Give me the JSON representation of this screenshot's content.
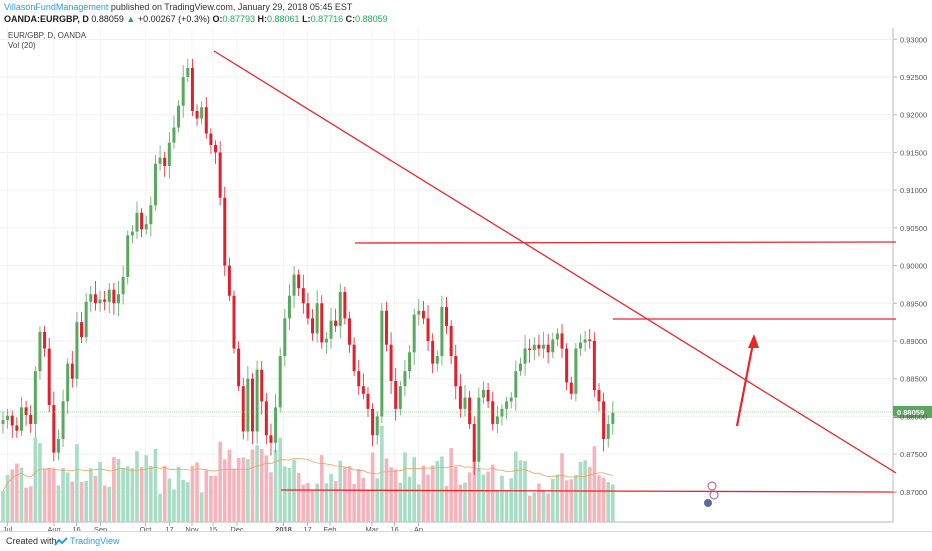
{
  "header": {
    "author": "VillasonFundManagement",
    "published": " published on TradingView.com, January 29, 2018 05:45 EST",
    "symbol": "OANDA:EURGBP, D",
    "price": "0.88059",
    "change": "+0.00267 (+0.3%)",
    "o_label": "O:",
    "o_value": "0.87793",
    "h_label": "H:",
    "h_value": "0.88061",
    "l_label": "L:",
    "l_value": "0.87716",
    "c_label": "C:",
    "c_value": "0.88059"
  },
  "legend": {
    "pair": "EUR/GBP, D, OANDA",
    "vol": "Vol (20)"
  },
  "footer": {
    "created": "Created with",
    "brand": "TradingView"
  },
  "colors": {
    "up": "#5aa85f",
    "down": "#e0202e",
    "vol_up": "#a8dcc4",
    "vol_down": "#f5b3bb",
    "trend": "#e8262e",
    "ma": "#f0a060"
  },
  "chart_data": {
    "type": "candlestick",
    "y_ticks": [
      "0.93000",
      "0.92500",
      "0.92000",
      "0.91500",
      "0.91000",
      "0.90500",
      "0.90000",
      "0.89500",
      "0.89000",
      "0.88500",
      "0.88000",
      "0.87500",
      "0.87000"
    ],
    "x_ticks": [
      "Jul",
      "Aug",
      "16",
      "Sep",
      "Oct",
      "17",
      "Nov",
      "15",
      "Dec",
      "2018",
      "17",
      "Feb",
      "Mar",
      "16",
      "Ap"
    ],
    "last_price_label": "0.88059",
    "ylim": [
      0.866,
      0.9315
    ],
    "x_range_days": [
      "2017-06-28",
      "2018-04-03"
    ],
    "closes": [
      0.8795,
      0.8801,
      0.8788,
      0.8781,
      0.8812,
      0.8802,
      0.879,
      0.886,
      0.8912,
      0.889,
      0.8815,
      0.8752,
      0.877,
      0.882,
      0.887,
      0.885,
      0.8925,
      0.8905,
      0.8952,
      0.8962,
      0.895,
      0.8955,
      0.8952,
      0.8968,
      0.895,
      0.8962,
      0.8985,
      0.904,
      0.9045,
      0.907,
      0.9048,
      0.9055,
      0.908,
      0.9135,
      0.9143,
      0.9132,
      0.9163,
      0.9183,
      0.9212,
      0.925,
      0.9262,
      0.9205,
      0.9195,
      0.921,
      0.9175,
      0.916,
      0.915,
      0.909,
      0.9,
      0.896,
      0.889,
      0.884,
      0.878,
      0.885,
      0.878,
      0.8862,
      0.882,
      0.8775,
      0.8765,
      0.8812,
      0.888,
      0.893,
      0.896,
      0.8988,
      0.897,
      0.895,
      0.893,
      0.891,
      0.895,
      0.8898,
      0.8903,
      0.8927,
      0.892,
      0.8965,
      0.893,
      0.8895,
      0.886,
      0.884,
      0.883,
      0.881,
      0.8775,
      0.88,
      0.894,
      0.8895,
      0.8847,
      0.881,
      0.884,
      0.886,
      0.8885,
      0.8935,
      0.894,
      0.893,
      0.89,
      0.887,
      0.888,
      0.8945,
      0.892,
      0.888,
      0.884,
      0.881,
      0.8825,
      0.879,
      0.874,
      0.8825,
      0.8835,
      0.882,
      0.879,
      0.88,
      0.881,
      0.882,
      0.8825,
      0.886,
      0.887,
      0.889,
      0.8888,
      0.8895,
      0.889,
      0.8895,
      0.8885,
      0.8902,
      0.891,
      0.889,
      0.8845,
      0.883,
      0.889,
      0.8898,
      0.8902,
      0.89,
      0.8835,
      0.882,
      0.877,
      0.879,
      0.8805
    ]
  }
}
